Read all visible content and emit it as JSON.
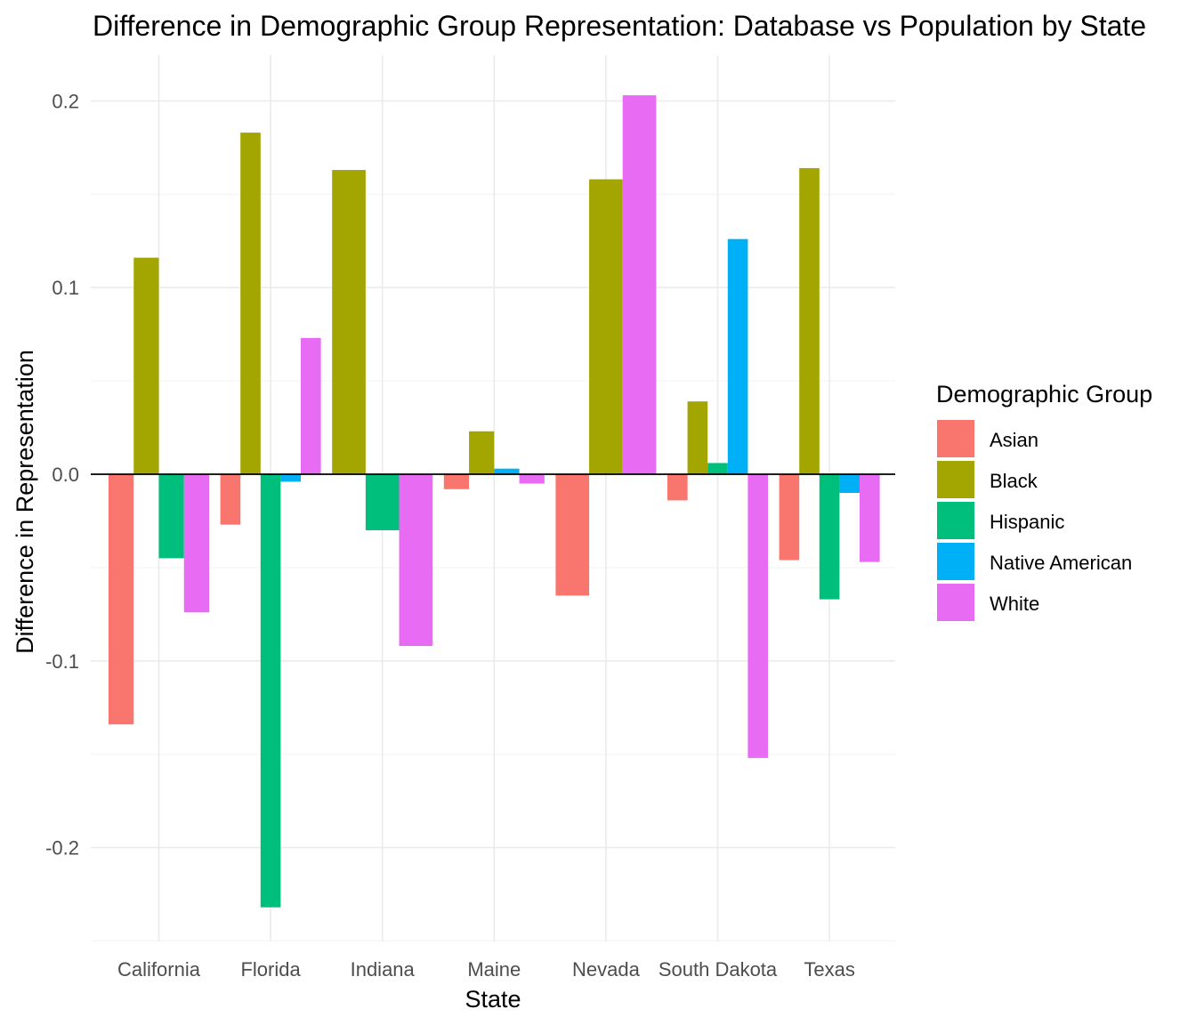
{
  "chart_data": {
    "type": "bar",
    "title": "Difference in Demographic Group Representation: Database vs Population by State",
    "xlabel": "State",
    "ylabel": "Difference in Representation",
    "categories": [
      "California",
      "Florida",
      "Indiana",
      "Maine",
      "Nevada",
      "South Dakota",
      "Texas"
    ],
    "ylim": [
      -0.25,
      0.2
    ],
    "yticks": [
      -0.2,
      -0.1,
      0.0,
      0.1,
      0.2
    ],
    "ytick_labels": [
      "-0.2",
      "-0.1",
      "0.0",
      "0.1",
      "0.2"
    ],
    "grid": true,
    "legend": {
      "title": "Demographic Group",
      "position": "right"
    },
    "series": [
      {
        "name": "Asian",
        "color": "#F8766D",
        "values": [
          -0.134,
          -0.027,
          null,
          -0.008,
          -0.065,
          -0.014,
          -0.046
        ]
      },
      {
        "name": "Black",
        "color": "#A3A500",
        "values": [
          0.116,
          0.183,
          0.163,
          0.023,
          0.158,
          0.039,
          0.164
        ]
      },
      {
        "name": "Hispanic",
        "color": "#00BF7D",
        "values": [
          -0.045,
          -0.232,
          -0.03,
          null,
          null,
          0.006,
          -0.067
        ]
      },
      {
        "name": "Native American",
        "color": "#00B0F6",
        "values": [
          null,
          -0.004,
          null,
          0.003,
          null,
          0.126,
          -0.01
        ]
      },
      {
        "name": "White",
        "color": "#E76BF3",
        "values": [
          -0.074,
          0.073,
          -0.092,
          -0.005,
          0.203,
          -0.152,
          -0.047
        ]
      }
    ]
  }
}
